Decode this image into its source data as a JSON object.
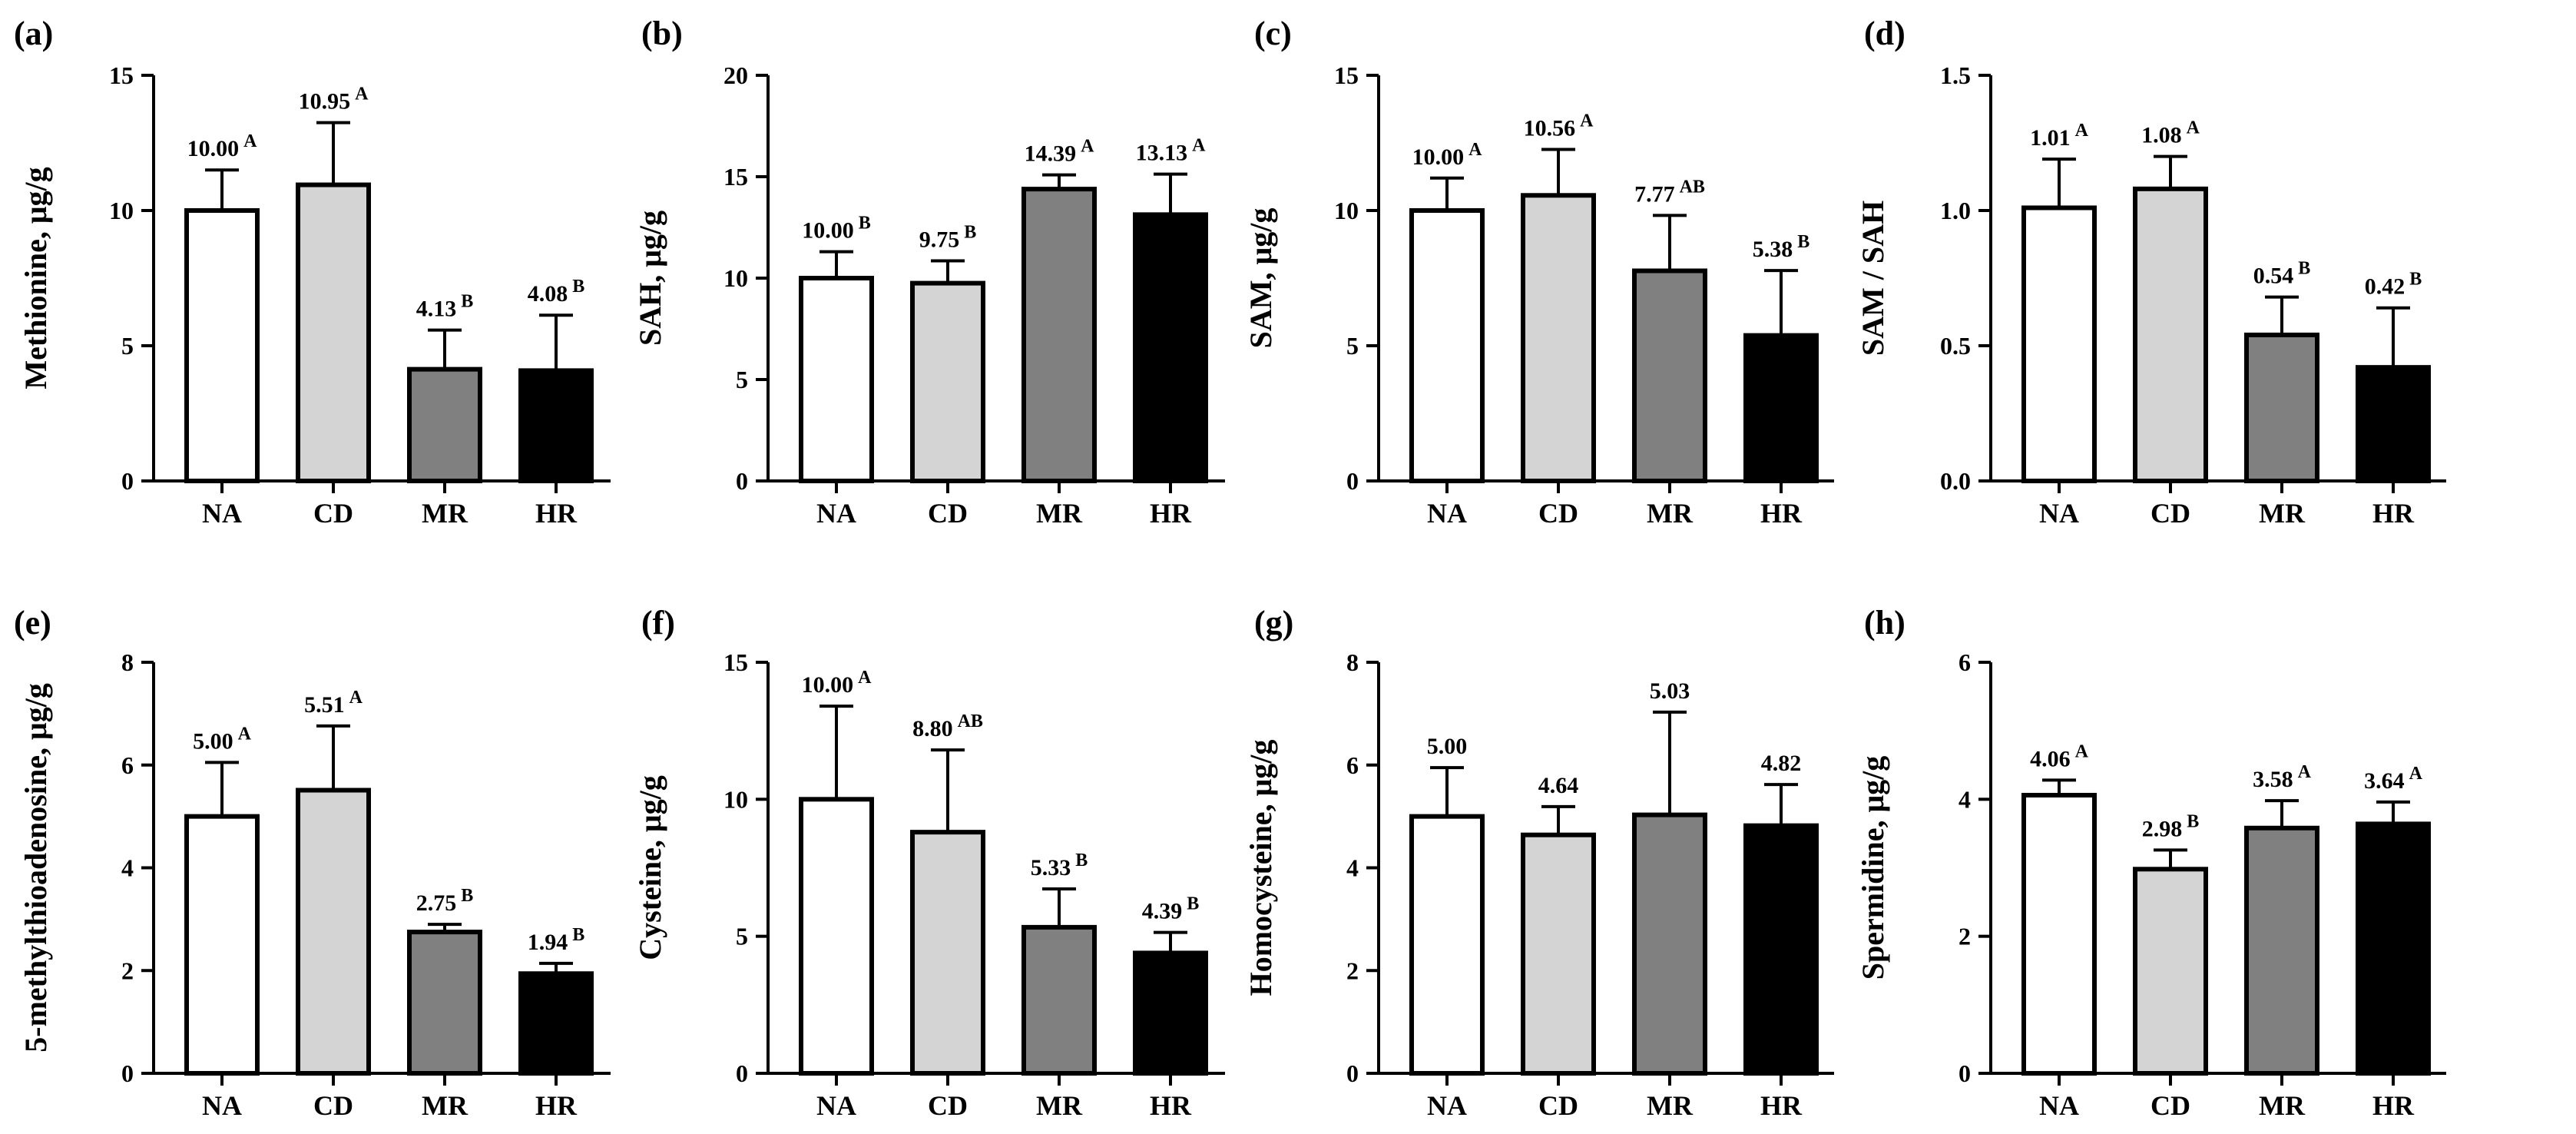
{
  "colors": {
    "NA": "#ffffff",
    "CD": "#d4d4d4",
    "MR": "#808080",
    "HR": "#000000",
    "axis": "#000000"
  },
  "chart_data": [
    {
      "type": "bar",
      "panel": "(a)",
      "ylabel": "Methionine, μg/g",
      "categories": [
        "NA",
        "CD",
        "MR",
        "HR"
      ],
      "values": [
        10.0,
        10.95,
        4.13,
        4.08
      ],
      "errors": [
        1.5,
        2.3,
        1.45,
        2.05
      ],
      "labels": [
        "10.00",
        "10.95",
        "4.13",
        "4.08"
      ],
      "letters": [
        "A",
        "A",
        "B",
        "B"
      ],
      "ylim": [
        0,
        15
      ],
      "yticks": [
        0,
        5,
        10,
        15
      ],
      "ytick_labels": [
        "0",
        "5",
        "10",
        "15"
      ]
    },
    {
      "type": "bar",
      "panel": "(b)",
      "ylabel": "SAH, μg/g",
      "categories": [
        "NA",
        "CD",
        "MR",
        "HR"
      ],
      "values": [
        10.0,
        9.75,
        14.39,
        13.13
      ],
      "errors": [
        1.3,
        1.1,
        0.7,
        2.0
      ],
      "labels": [
        "10.00",
        "9.75",
        "14.39",
        "13.13"
      ],
      "letters": [
        "B",
        "B",
        "A",
        "A"
      ],
      "ylim": [
        0,
        20
      ],
      "yticks": [
        0,
        5,
        10,
        15,
        20
      ],
      "ytick_labels": [
        "0",
        "5",
        "10",
        "15",
        "20"
      ]
    },
    {
      "type": "bar",
      "panel": "(c)",
      "ylabel": "SAM, μg/g",
      "categories": [
        "NA",
        "CD",
        "MR",
        "HR"
      ],
      "values": [
        10.0,
        10.56,
        7.77,
        5.38
      ],
      "errors": [
        1.2,
        1.7,
        2.05,
        2.4
      ],
      "labels": [
        "10.00",
        "10.56",
        "7.77",
        "5.38"
      ],
      "letters": [
        "A",
        "A",
        "AB",
        "B"
      ],
      "ylim": [
        0,
        15
      ],
      "yticks": [
        0,
        5,
        10,
        15
      ],
      "ytick_labels": [
        "0",
        "5",
        "10",
        "15"
      ]
    },
    {
      "type": "bar",
      "panel": "(d)",
      "ylabel": "SAM / SAH",
      "categories": [
        "NA",
        "CD",
        "MR",
        "HR"
      ],
      "values": [
        1.01,
        1.08,
        0.54,
        0.42
      ],
      "errors": [
        0.18,
        0.12,
        0.14,
        0.22
      ],
      "labels": [
        "1.01",
        "1.08",
        "0.54",
        "0.42"
      ],
      "letters": [
        "A",
        "A",
        "B",
        "B"
      ],
      "ylim": [
        0,
        1.5
      ],
      "yticks": [
        0,
        0.5,
        1.0,
        1.5
      ],
      "ytick_labels": [
        "0.0",
        "0.5",
        "1.0",
        "1.5"
      ]
    },
    {
      "type": "bar",
      "panel": "(e)",
      "ylabel": "5-methylthioadenosine, μg/g",
      "categories": [
        "NA",
        "CD",
        "MR",
        "HR"
      ],
      "values": [
        5.0,
        5.51,
        2.75,
        1.94
      ],
      "errors": [
        1.05,
        1.25,
        0.15,
        0.2
      ],
      "labels": [
        "5.00",
        "5.51",
        "2.75",
        "1.94"
      ],
      "letters": [
        "A",
        "A",
        "B",
        "B"
      ],
      "ylim": [
        0,
        8
      ],
      "yticks": [
        0,
        2,
        4,
        6,
        8
      ],
      "ytick_labels": [
        "0",
        "2",
        "4",
        "6",
        "8"
      ]
    },
    {
      "type": "bar",
      "panel": "(f)",
      "ylabel": "Cysteine, μg/g",
      "categories": [
        "NA",
        "CD",
        "MR",
        "HR"
      ],
      "values": [
        10.0,
        8.8,
        5.33,
        4.39
      ],
      "errors": [
        3.4,
        3.0,
        1.4,
        0.75
      ],
      "labels": [
        "10.00",
        "8.80",
        "5.33",
        "4.39"
      ],
      "letters": [
        "A",
        "AB",
        "B",
        "B"
      ],
      "ylim": [
        0,
        15
      ],
      "yticks": [
        0,
        5,
        10,
        15
      ],
      "ytick_labels": [
        "0",
        "5",
        "10",
        "15"
      ]
    },
    {
      "type": "bar",
      "panel": "(g)",
      "ylabel": "Homocysteine, μg/g",
      "categories": [
        "NA",
        "CD",
        "MR",
        "HR"
      ],
      "values": [
        5.0,
        4.64,
        5.03,
        4.82
      ],
      "errors": [
        0.95,
        0.55,
        2.0,
        0.8
      ],
      "labels": [
        "5.00",
        "4.64",
        "5.03",
        "4.82"
      ],
      "letters": [
        "",
        "",
        "",
        ""
      ],
      "ylim": [
        0,
        8
      ],
      "yticks": [
        0,
        2,
        4,
        6,
        8
      ],
      "ytick_labels": [
        "0",
        "2",
        "4",
        "6",
        "8"
      ]
    },
    {
      "type": "bar",
      "panel": "(h)",
      "ylabel": "Spermidine, μg/g",
      "categories": [
        "NA",
        "CD",
        "MR",
        "HR"
      ],
      "values": [
        4.06,
        2.98,
        3.58,
        3.64
      ],
      "errors": [
        0.22,
        0.28,
        0.4,
        0.32
      ],
      "labels": [
        "4.06",
        "2.98",
        "3.58",
        "3.64"
      ],
      "letters": [
        "A",
        "B",
        "A",
        "A"
      ],
      "ylim": [
        0,
        6
      ],
      "yticks": [
        0,
        2,
        4,
        6
      ],
      "ytick_labels": [
        "0",
        "2",
        "4",
        "6"
      ]
    }
  ]
}
